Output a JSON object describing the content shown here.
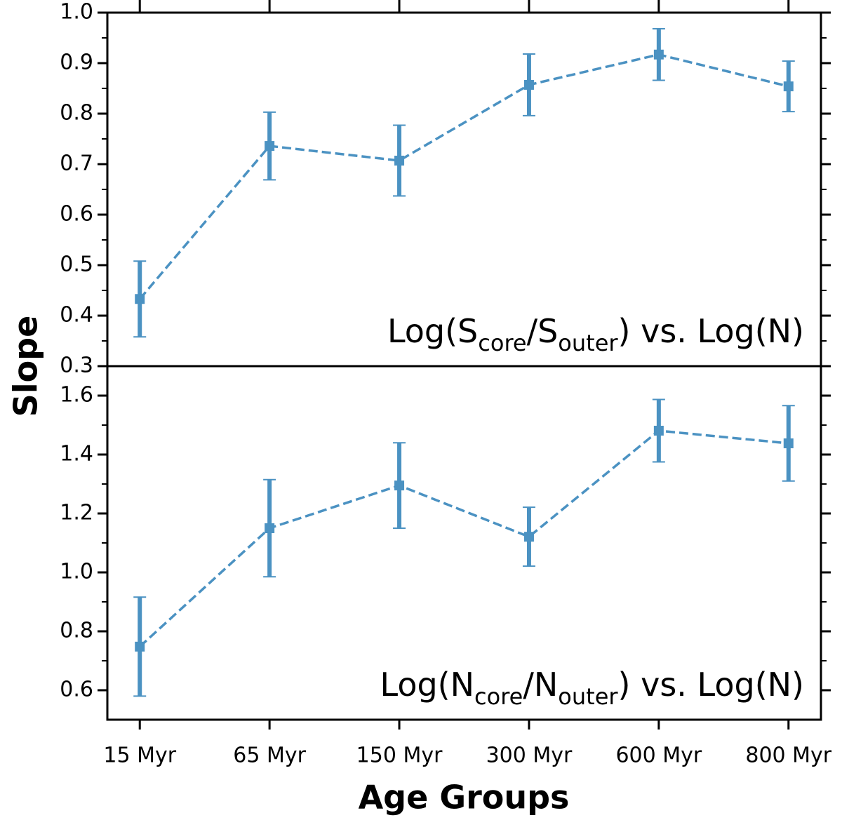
{
  "chart_data": [
    {
      "type": "line",
      "y_label": "Slope",
      "annotation": {
        "start": "Log(S",
        "sub1": "core",
        "middle": "/S",
        "sub2": "outer",
        "end": ") vs. Log(N)"
      },
      "values": [
        0.433,
        0.736,
        0.707,
        0.857,
        0.917,
        0.854
      ],
      "errors": [
        0.075,
        0.067,
        0.07,
        0.061,
        0.051,
        0.05
      ],
      "color": "#1f77b4",
      "linestyle": "dashed",
      "ylim": [
        0.3,
        1.0
      ],
      "yticks": [
        0.3,
        0.4,
        0.5,
        0.6,
        0.7,
        0.8,
        0.9,
        {
          "value": 1,
          "label": "1.0"
        }
      ]
    },
    {
      "type": "line",
      "x_label": "Age Groups",
      "annotation": {
        "start": "Log(N",
        "sub1": "core",
        "middle": "/N",
        "sub2": "outer",
        "end": ") vs. Log(N)"
      },
      "categories": [
        "15 Myr",
        "65 Myr",
        "150 Myr",
        "300 Myr",
        "600 Myr",
        "800 Myr"
      ],
      "values": [
        0.748,
        1.15,
        1.295,
        1.121,
        1.481,
        1.438
      ],
      "errors": [
        0.168,
        0.165,
        0.145,
        0.1,
        0.106,
        0.128
      ],
      "color": "#1f77b4",
      "linestyle": "dashed",
      "ylim": [
        0.5,
        1.7
      ],
      "yticks": [
        0.6,
        0.8,
        {
          "value": 1,
          "label": "1.0"
        },
        1.2,
        1.4,
        1.6
      ]
    }
  ]
}
